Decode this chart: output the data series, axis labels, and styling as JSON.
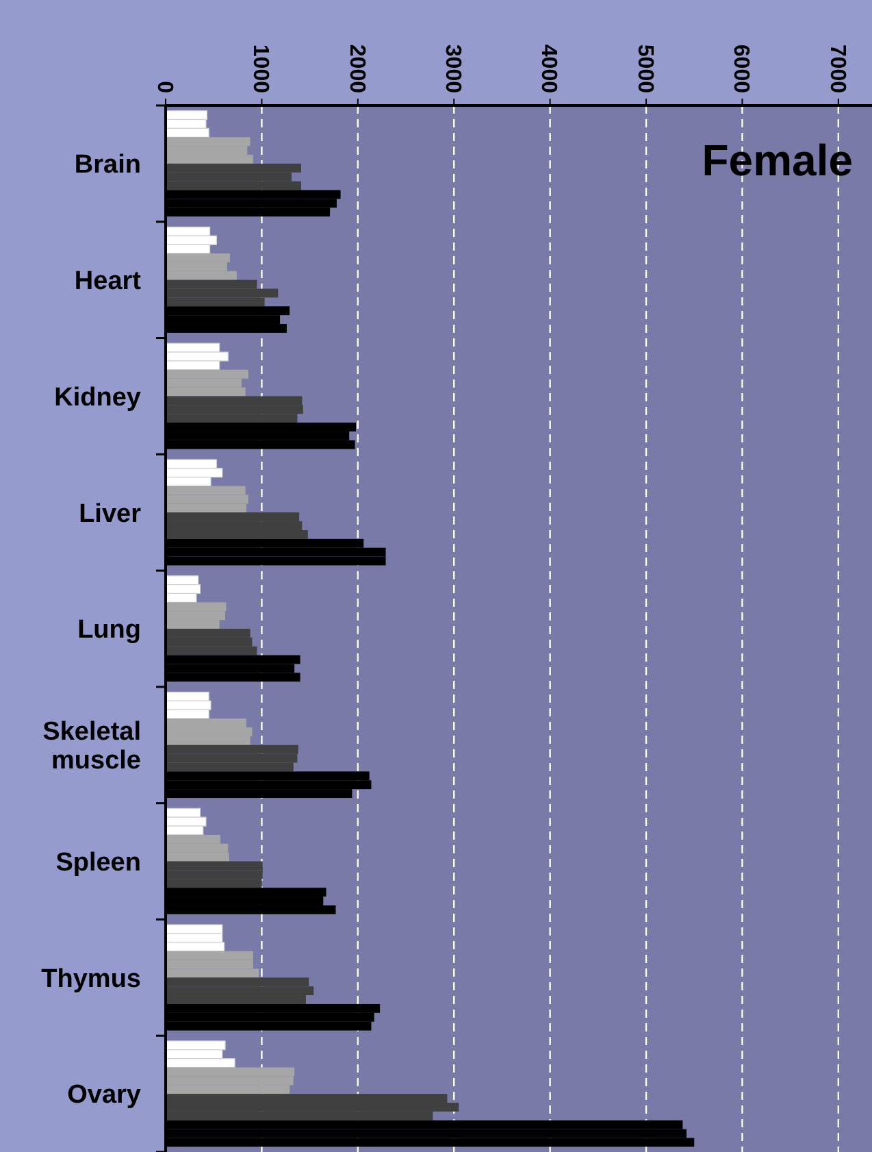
{
  "chart_data": {
    "type": "bar",
    "orientation": "horizontal",
    "categories": [
      "Brain",
      "Heart",
      "Kidney",
      "Liver",
      "Lung",
      "Skeletal muscle",
      "Spleen",
      "Thymus",
      "Ovary"
    ],
    "series": [
      {
        "color": "#ffffff",
        "values": [
          430,
          460,
          560,
          530,
          340,
          450,
          360,
          590,
          620
        ]
      },
      {
        "color": "#ffffff",
        "values": [
          420,
          530,
          650,
          590,
          360,
          470,
          420,
          590,
          590
        ]
      },
      {
        "color": "#ffffff",
        "values": [
          450,
          460,
          560,
          470,
          320,
          450,
          390,
          610,
          720
        ]
      },
      {
        "color": "#a6a6a6",
        "values": [
          880,
          670,
          860,
          830,
          630,
          840,
          570,
          910,
          1340
        ]
      },
      {
        "color": "#a6a6a6",
        "values": [
          850,
          640,
          790,
          860,
          620,
          900,
          650,
          910,
          1330
        ]
      },
      {
        "color": "#a6a6a6",
        "values": [
          910,
          740,
          830,
          840,
          560,
          880,
          660,
          970,
          1290
        ]
      },
      {
        "color": "#404040",
        "values": [
          1410,
          950,
          1420,
          1390,
          880,
          1380,
          1010,
          1490,
          2930
        ]
      },
      {
        "color": "#404040",
        "values": [
          1310,
          1170,
          1430,
          1420,
          900,
          1370,
          1010,
          1540,
          3050
        ]
      },
      {
        "color": "#404040",
        "values": [
          1410,
          1030,
          1370,
          1480,
          950,
          1330,
          1000,
          1460,
          2780
        ]
      },
      {
        "color": "#000000",
        "values": [
          1820,
          1290,
          1980,
          2060,
          1400,
          2120,
          1670,
          2230,
          5380
        ]
      },
      {
        "color": "#000000",
        "values": [
          1780,
          1190,
          1910,
          2290,
          1340,
          2140,
          1640,
          2170,
          5420
        ]
      },
      {
        "color": "#000000",
        "values": [
          1710,
          1260,
          1970,
          2290,
          1400,
          1940,
          1770,
          2140,
          5500
        ]
      }
    ],
    "xlim": [
      0,
      7350
    ],
    "xticks": [
      0,
      1000,
      2000,
      3000,
      4000,
      5000,
      6000,
      7000
    ],
    "grid": "x",
    "annotations": [
      "Female"
    ]
  }
}
